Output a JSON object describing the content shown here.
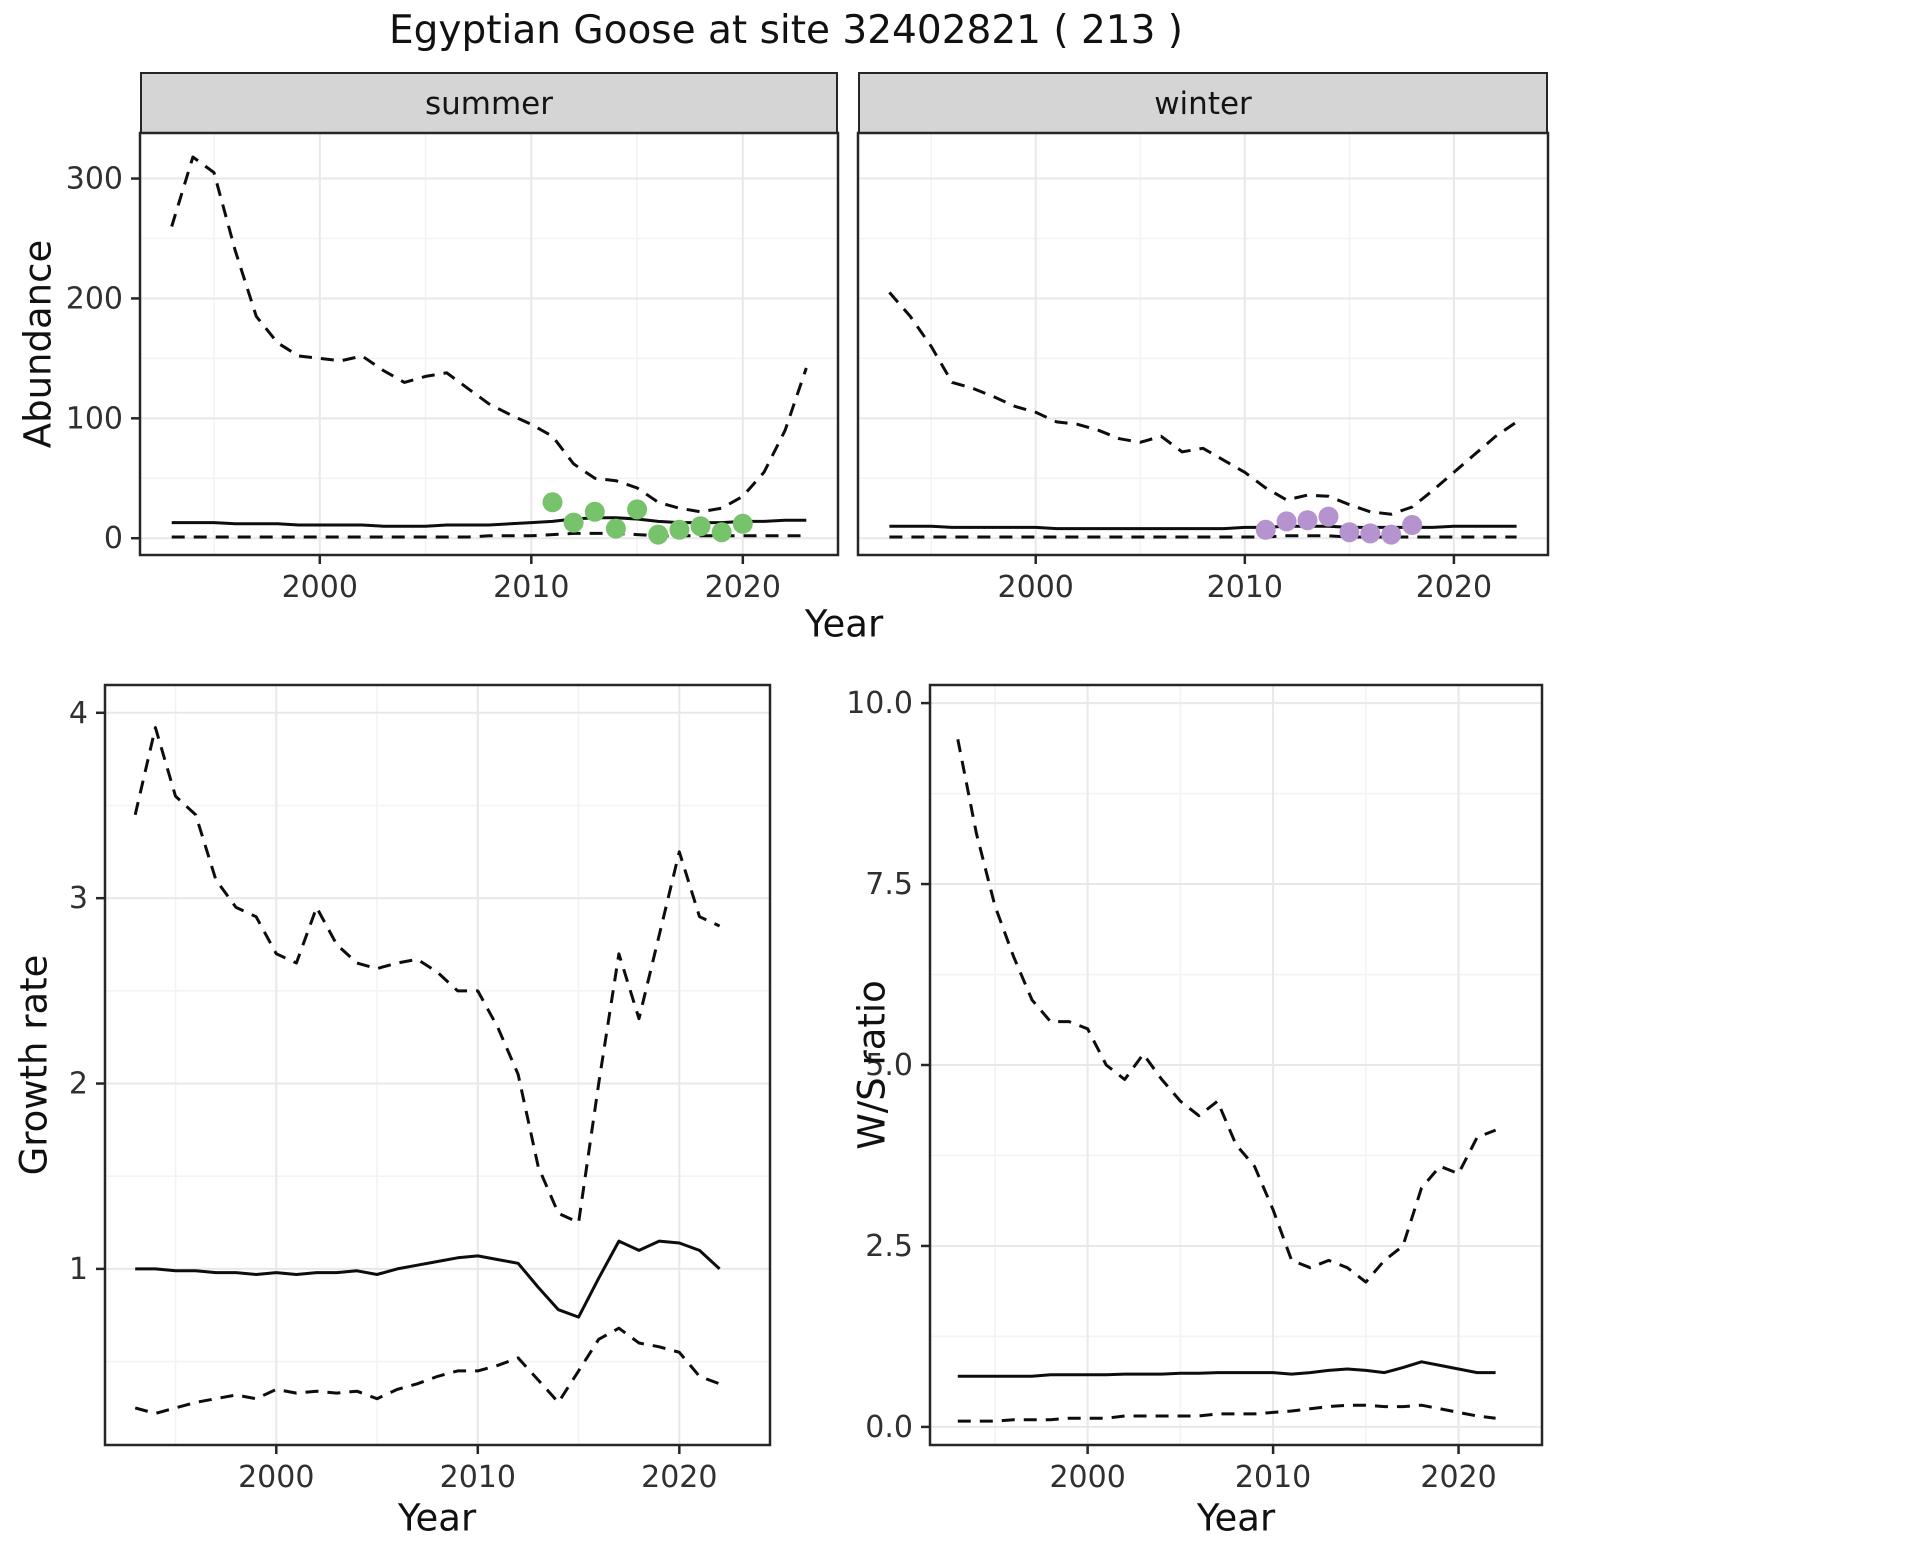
{
  "title": "Egyptian Goose at site 32402821 ( 213 )",
  "labels": {
    "year": "Year",
    "abundance": "Abundance",
    "growth_rate": "Growth rate",
    "ws_ratio": "W/S ratio"
  },
  "facets": {
    "summer": "summer",
    "winter": "winter"
  },
  "colors": {
    "line": "#0d0d0d",
    "summer_points": "#77c36b",
    "winter_points": "#b493ce",
    "strip_bg": "#d5d5d5",
    "grid_major": "#e8e8e8",
    "grid_minor": "#f3f3f3",
    "panel_border": "#262626",
    "tick_label": "#303030"
  },
  "chart_data": [
    {
      "id": "abundance-summer",
      "type": "line",
      "facet": "summer",
      "xlabel": "Year",
      "ylabel": "Abundance",
      "xlim": [
        1991.5,
        2024.5
      ],
      "ylim": [
        -14,
        338
      ],
      "xticks": [
        2000,
        2010,
        2020
      ],
      "xtick_labels": [
        "2000",
        "2010",
        "2020"
      ],
      "yticks": [
        0,
        100,
        200,
        300
      ],
      "ytick_labels": [
        "0",
        "100",
        "200",
        "300"
      ],
      "minor_xticks": [
        1995,
        2005,
        2015
      ],
      "minor_yticks": [
        50,
        150,
        250
      ],
      "x": [
        1993,
        1994,
        1995,
        1996,
        1997,
        1998,
        1999,
        2000,
        2001,
        2002,
        2003,
        2004,
        2005,
        2006,
        2007,
        2008,
        2009,
        2010,
        2011,
        2012,
        2013,
        2014,
        2015,
        2016,
        2017,
        2018,
        2019,
        2020,
        2021,
        2022,
        2023
      ],
      "series": [
        {
          "name": "upper_ci",
          "style": "dashed",
          "values": [
            260,
            318,
            305,
            240,
            185,
            163,
            152,
            150,
            148,
            152,
            140,
            130,
            135,
            138,
            125,
            112,
            103,
            95,
            85,
            62,
            50,
            48,
            42,
            30,
            25,
            22,
            25,
            35,
            55,
            90,
            142
          ]
        },
        {
          "name": "estimate",
          "style": "solid",
          "values": [
            13,
            13,
            13,
            12,
            12,
            12,
            11,
            11,
            11,
            11,
            10,
            10,
            10,
            11,
            11,
            11,
            12,
            13,
            14,
            16,
            17,
            17,
            16,
            14,
            13,
            13,
            13,
            14,
            14,
            15,
            15
          ]
        },
        {
          "name": "lower_ci",
          "style": "dashed",
          "values": [
            1,
            1,
            1,
            1,
            1,
            1,
            1,
            1,
            1,
            1,
            1,
            1,
            1,
            1,
            1,
            2,
            2,
            2,
            3,
            4,
            4,
            4,
            3,
            2,
            2,
            2,
            2,
            2,
            2,
            2,
            2
          ]
        }
      ],
      "points": {
        "name": "observed_counts_summer",
        "color": "#77c36b",
        "x": [
          2011,
          2012,
          2013,
          2014,
          2015,
          2016,
          2017,
          2018,
          2019,
          2020
        ],
        "y": [
          30,
          13,
          22,
          8,
          24,
          3,
          7,
          10,
          5,
          12
        ]
      }
    },
    {
      "id": "abundance-winter",
      "type": "line",
      "facet": "winter",
      "xlabel": "Year",
      "ylabel": "Abundance",
      "xlim": [
        1991.5,
        2024.5
      ],
      "ylim": [
        -14,
        338
      ],
      "xticks": [
        2000,
        2010,
        2020
      ],
      "xtick_labels": [
        "2000",
        "2010",
        "2020"
      ],
      "yticks": [
        0,
        100,
        200,
        300
      ],
      "ytick_labels": [
        "0",
        "100",
        "200",
        "300"
      ],
      "minor_xticks": [
        1995,
        2005,
        2015
      ],
      "minor_yticks": [
        50,
        150,
        250
      ],
      "x": [
        1993,
        1994,
        1995,
        1996,
        1997,
        1998,
        1999,
        2000,
        2001,
        2002,
        2003,
        2004,
        2005,
        2006,
        2007,
        2008,
        2009,
        2010,
        2011,
        2012,
        2013,
        2014,
        2015,
        2016,
        2017,
        2018,
        2019,
        2020,
        2021,
        2022,
        2023
      ],
      "series": [
        {
          "name": "upper_ci",
          "style": "dashed",
          "values": [
            205,
            185,
            160,
            130,
            125,
            118,
            110,
            105,
            97,
            95,
            90,
            83,
            80,
            85,
            72,
            75,
            65,
            55,
            42,
            32,
            36,
            35,
            28,
            22,
            20,
            26,
            40,
            55,
            70,
            85,
            97
          ]
        },
        {
          "name": "estimate",
          "style": "solid",
          "values": [
            10,
            10,
            10,
            9,
            9,
            9,
            9,
            9,
            8,
            8,
            8,
            8,
            8,
            8,
            8,
            8,
            8,
            9,
            9,
            10,
            10,
            10,
            9,
            9,
            9,
            9,
            9,
            10,
            10,
            10,
            10
          ]
        },
        {
          "name": "lower_ci",
          "style": "dashed",
          "values": [
            1,
            1,
            1,
            1,
            1,
            1,
            1,
            1,
            1,
            1,
            1,
            1,
            1,
            1,
            1,
            1,
            1,
            1,
            1,
            2,
            2,
            2,
            1,
            1,
            1,
            1,
            1,
            1,
            1,
            1,
            1
          ]
        }
      ],
      "points": {
        "name": "observed_counts_winter",
        "color": "#b493ce",
        "x": [
          2011,
          2012,
          2013,
          2014,
          2015,
          2016,
          2017,
          2018
        ],
        "y": [
          7,
          14,
          15,
          18,
          5,
          4,
          3,
          11
        ]
      }
    },
    {
      "id": "growth-rate",
      "type": "line",
      "facet": null,
      "xlabel": "Year",
      "ylabel": "Growth rate",
      "xlim": [
        1991.5,
        2024.5
      ],
      "ylim": [
        0.05,
        4.15
      ],
      "xticks": [
        2000,
        2010,
        2020
      ],
      "xtick_labels": [
        "2000",
        "2010",
        "2020"
      ],
      "yticks": [
        1,
        2,
        3,
        4
      ],
      "ytick_labels": [
        "1",
        "2",
        "3",
        "4"
      ],
      "minor_xticks": [
        1995,
        2005,
        2015
      ],
      "minor_yticks": [
        0.5,
        1.5,
        2.5,
        3.5
      ],
      "x": [
        1993,
        1994,
        1995,
        1996,
        1997,
        1998,
        1999,
        2000,
        2001,
        2002,
        2003,
        2004,
        2005,
        2006,
        2007,
        2008,
        2009,
        2010,
        2011,
        2012,
        2013,
        2014,
        2015,
        2016,
        2017,
        2018,
        2019,
        2020,
        2021,
        2022
      ],
      "series": [
        {
          "name": "upper_ci",
          "style": "dashed",
          "values": [
            3.45,
            3.92,
            3.55,
            3.45,
            3.1,
            2.95,
            2.9,
            2.7,
            2.65,
            2.95,
            2.75,
            2.65,
            2.62,
            2.65,
            2.67,
            2.6,
            2.5,
            2.5,
            2.3,
            2.05,
            1.55,
            1.3,
            1.25,
            2.0,
            2.7,
            2.35,
            2.8,
            3.25,
            2.9,
            2.85
          ]
        },
        {
          "name": "estimate",
          "style": "solid",
          "values": [
            1.0,
            1.0,
            0.99,
            0.99,
            0.98,
            0.98,
            0.97,
            0.98,
            0.97,
            0.98,
            0.98,
            0.99,
            0.97,
            1.0,
            1.02,
            1.04,
            1.06,
            1.07,
            1.05,
            1.03,
            0.9,
            0.78,
            0.74,
            0.95,
            1.15,
            1.1,
            1.15,
            1.14,
            1.1,
            1.0
          ]
        },
        {
          "name": "lower_ci",
          "style": "dashed",
          "values": [
            0.25,
            0.22,
            0.25,
            0.28,
            0.3,
            0.32,
            0.3,
            0.35,
            0.33,
            0.34,
            0.33,
            0.34,
            0.3,
            0.35,
            0.38,
            0.42,
            0.45,
            0.45,
            0.48,
            0.52,
            0.4,
            0.28,
            0.45,
            0.62,
            0.68,
            0.6,
            0.58,
            0.55,
            0.42,
            0.38
          ]
        }
      ],
      "points": null
    },
    {
      "id": "ws-ratio",
      "type": "line",
      "facet": null,
      "xlabel": "Year",
      "ylabel": "W/S ratio",
      "xlim": [
        1991.5,
        2024.5
      ],
      "ylim": [
        -0.25,
        10.25
      ],
      "xticks": [
        2000,
        2010,
        2020
      ],
      "xtick_labels": [
        "2000",
        "2010",
        "2020"
      ],
      "yticks": [
        0,
        2.5,
        5,
        7.5,
        10
      ],
      "ytick_labels": [
        "0.0",
        "2.5",
        "5.0",
        "7.5",
        "10.0"
      ],
      "minor_xticks": [
        1995,
        2005,
        2015
      ],
      "minor_yticks": [
        1.25,
        3.75,
        6.25,
        8.75
      ],
      "x": [
        1993,
        1994,
        1995,
        1996,
        1997,
        1998,
        1999,
        2000,
        2001,
        2002,
        2003,
        2004,
        2005,
        2006,
        2007,
        2008,
        2009,
        2010,
        2011,
        2012,
        2013,
        2014,
        2015,
        2016,
        2017,
        2018,
        2019,
        2020,
        2021,
        2022
      ],
      "series": [
        {
          "name": "upper_ci",
          "style": "dashed",
          "values": [
            9.5,
            8.2,
            7.2,
            6.5,
            5.9,
            5.6,
            5.6,
            5.5,
            5.0,
            4.8,
            5.15,
            4.8,
            4.5,
            4.3,
            4.5,
            3.9,
            3.6,
            3.0,
            2.3,
            2.2,
            2.3,
            2.2,
            2.0,
            2.3,
            2.5,
            3.3,
            3.6,
            3.5,
            4.0,
            4.1
          ]
        },
        {
          "name": "estimate",
          "style": "solid",
          "values": [
            0.7,
            0.7,
            0.7,
            0.7,
            0.7,
            0.72,
            0.72,
            0.72,
            0.72,
            0.73,
            0.73,
            0.73,
            0.74,
            0.74,
            0.75,
            0.75,
            0.75,
            0.75,
            0.73,
            0.75,
            0.78,
            0.8,
            0.78,
            0.75,
            0.82,
            0.9,
            0.85,
            0.8,
            0.75,
            0.75
          ]
        },
        {
          "name": "lower_ci",
          "style": "dashed",
          "values": [
            0.08,
            0.08,
            0.08,
            0.1,
            0.1,
            0.1,
            0.12,
            0.12,
            0.12,
            0.15,
            0.15,
            0.15,
            0.15,
            0.15,
            0.18,
            0.18,
            0.18,
            0.2,
            0.22,
            0.25,
            0.28,
            0.3,
            0.3,
            0.28,
            0.28,
            0.3,
            0.25,
            0.2,
            0.15,
            0.12
          ]
        }
      ],
      "points": null
    }
  ]
}
